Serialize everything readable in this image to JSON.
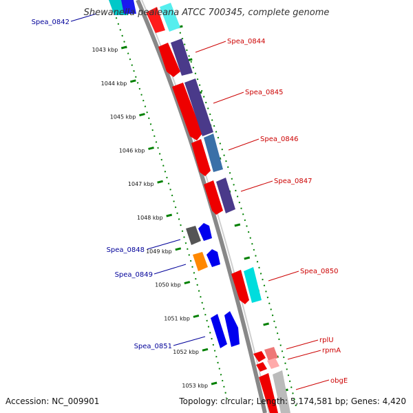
{
  "title": "Shewanella pealeana ATCC 700345, complete genome",
  "footer": {
    "accession": "Accession: NC_009901",
    "topology": "Topology: circular; Length: 5,174,581 bp; Genes: 4,420"
  },
  "colors": {
    "forward_label": "#cc0000",
    "reverse_label": "#000099",
    "tick_dots": "#008000",
    "backbone": "#909090"
  },
  "ticks": [
    {
      "kbp": 1043,
      "label": "1043 kbp"
    },
    {
      "kbp": 1044,
      "label": "1044 kbp"
    },
    {
      "kbp": 1045,
      "label": "1045 kbp"
    },
    {
      "kbp": 1046,
      "label": "1046 kbp"
    },
    {
      "kbp": 1047,
      "label": "1047 kbp"
    },
    {
      "kbp": 1048,
      "label": "1048 kbp"
    },
    {
      "kbp": 1049,
      "label": "1049 kbp"
    },
    {
      "kbp": 1050,
      "label": "1050 kbp"
    },
    {
      "kbp": 1051,
      "label": "1051 kbp"
    },
    {
      "kbp": 1052,
      "label": "1052 kbp"
    },
    {
      "kbp": 1053,
      "label": "1053 kbp"
    }
  ],
  "genes": [
    {
      "name": "Spea_0842",
      "strand": "-"
    },
    {
      "name": "Spea_0844",
      "strand": "+"
    },
    {
      "name": "Spea_0845",
      "strand": "+"
    },
    {
      "name": "Spea_0846",
      "strand": "+"
    },
    {
      "name": "Spea_0847",
      "strand": "+"
    },
    {
      "name": "Spea_0848",
      "strand": "-"
    },
    {
      "name": "Spea_0849",
      "strand": "-"
    },
    {
      "name": "Spea_0850",
      "strand": "+"
    },
    {
      "name": "Spea_0851",
      "strand": "-"
    },
    {
      "name": "rplU",
      "strand": "+"
    },
    {
      "name": "rpmA",
      "strand": "+"
    },
    {
      "name": "obgE",
      "strand": "+"
    }
  ]
}
